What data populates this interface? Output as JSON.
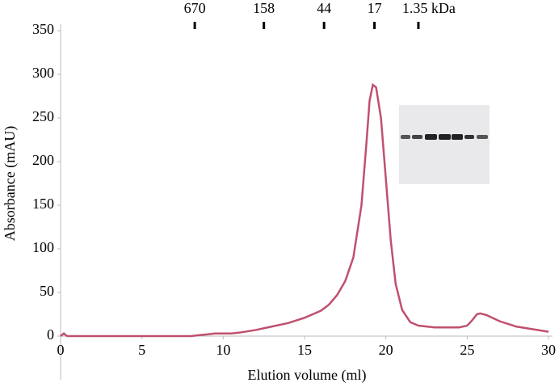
{
  "chart_data": {
    "type": "line",
    "x_label": "Elution volume (ml)",
    "y_label": "Absorbance (mAU)",
    "xlim": [
      0,
      30
    ],
    "xticks": [
      0,
      5,
      10,
      15,
      20,
      25,
      30
    ],
    "ylim": [
      0,
      350
    ],
    "yticks": [
      0,
      50,
      100,
      150,
      200,
      250,
      300,
      350
    ],
    "markers": [
      {
        "label": "670",
        "x": 8.25
      },
      {
        "label": "158",
        "x": 12.5
      },
      {
        "label": "44",
        "x": 16.2
      },
      {
        "label": "17",
        "x": 19.3
      },
      {
        "label": "1.35 kDa",
        "x": 22.0
      }
    ],
    "series": [
      {
        "color": "#c0506e",
        "x": [
          0,
          0.2,
          0.4,
          1,
          8,
          8.5,
          9.5,
          10.5,
          11,
          12,
          13,
          14,
          15,
          16,
          16.5,
          17,
          17.5,
          18,
          18.5,
          18.8,
          19,
          19.2,
          19.4,
          19.7,
          20,
          20.3,
          20.6,
          21,
          21.5,
          22,
          23,
          24,
          24.5,
          25,
          25.3,
          25.6,
          25.8,
          26.2,
          27,
          28,
          29,
          30
        ],
        "values": [
          0,
          3,
          0,
          0,
          0,
          1,
          3,
          3,
          4,
          7,
          11,
          15,
          21,
          29,
          36,
          47,
          63,
          90,
          150,
          220,
          270,
          288,
          285,
          250,
          180,
          110,
          60,
          30,
          16,
          12,
          10,
          10,
          10,
          12,
          18,
          25,
          26,
          24,
          17,
          11,
          8,
          5
        ]
      }
    ]
  }
}
